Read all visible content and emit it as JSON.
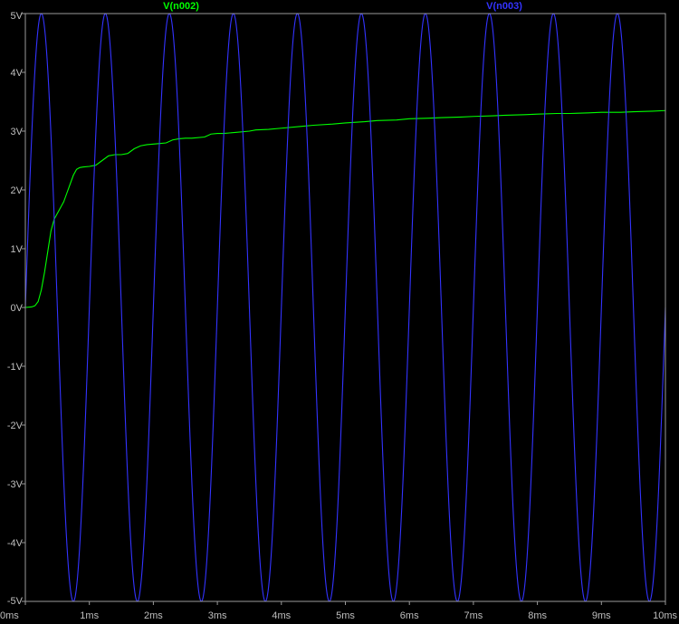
{
  "chart_data": {
    "type": "line",
    "title": "",
    "xlabel": "",
    "ylabel": "",
    "xlim": [
      0,
      10
    ],
    "ylim": [
      -5,
      5
    ],
    "grid": false,
    "legend_position": "top",
    "x_ticks": [
      {
        "value": 0,
        "label": "0ms"
      },
      {
        "value": 1,
        "label": "1ms"
      },
      {
        "value": 2,
        "label": "2ms"
      },
      {
        "value": 3,
        "label": "3ms"
      },
      {
        "value": 4,
        "label": "4ms"
      },
      {
        "value": 5,
        "label": "5ms"
      },
      {
        "value": 6,
        "label": "6ms"
      },
      {
        "value": 7,
        "label": "7ms"
      },
      {
        "value": 8,
        "label": "8ms"
      },
      {
        "value": 9,
        "label": "9ms"
      },
      {
        "value": 10,
        "label": "10ms"
      }
    ],
    "y_ticks": [
      {
        "value": 5,
        "label": "5V"
      },
      {
        "value": 4,
        "label": "4V"
      },
      {
        "value": 3,
        "label": "3V"
      },
      {
        "value": 2,
        "label": "2V"
      },
      {
        "value": 1,
        "label": "1V"
      },
      {
        "value": 0,
        "label": "0V"
      },
      {
        "value": -1,
        "label": "-1V"
      },
      {
        "value": -2,
        "label": "-2V"
      },
      {
        "value": -3,
        "label": "-3V"
      },
      {
        "value": -4,
        "label": "-4V"
      },
      {
        "value": -5,
        "label": "-5V"
      }
    ],
    "series": [
      {
        "name": "V(n002)",
        "color": "#00ff00",
        "x": [
          0,
          0.1,
          0.15,
          0.2,
          0.25,
          0.3,
          0.35,
          0.4,
          0.45,
          0.5,
          0.55,
          0.6,
          0.65,
          0.7,
          0.75,
          0.8,
          0.85,
          0.9,
          1.0,
          1.1,
          1.2,
          1.3,
          1.4,
          1.5,
          1.6,
          1.7,
          1.8,
          1.9,
          2.0,
          2.1,
          2.2,
          2.3,
          2.4,
          2.5,
          2.6,
          2.8,
          2.9,
          3.0,
          3.1,
          3.3,
          3.5,
          3.6,
          3.8,
          4.0,
          4.3,
          4.5,
          4.8,
          5.0,
          5.3,
          5.5,
          5.8,
          6.0,
          6.3,
          6.5,
          6.8,
          7.0,
          7.3,
          7.5,
          7.8,
          8.0,
          8.3,
          8.5,
          8.8,
          9.0,
          9.3,
          9.5,
          9.8,
          10.0
        ],
        "values": [
          0.0,
          0.01,
          0.03,
          0.1,
          0.3,
          0.6,
          0.95,
          1.3,
          1.5,
          1.6,
          1.7,
          1.8,
          1.95,
          2.1,
          2.25,
          2.35,
          2.38,
          2.39,
          2.4,
          2.42,
          2.5,
          2.58,
          2.6,
          2.6,
          2.62,
          2.7,
          2.75,
          2.77,
          2.78,
          2.79,
          2.8,
          2.85,
          2.87,
          2.88,
          2.88,
          2.9,
          2.95,
          2.96,
          2.96,
          2.98,
          3.0,
          3.02,
          3.03,
          3.05,
          3.08,
          3.1,
          3.12,
          3.14,
          3.16,
          3.18,
          3.19,
          3.21,
          3.22,
          3.23,
          3.24,
          3.25,
          3.26,
          3.27,
          3.28,
          3.29,
          3.3,
          3.3,
          3.31,
          3.32,
          3.32,
          3.33,
          3.34,
          3.35
        ]
      },
      {
        "name": "V(n003)",
        "color": "#3333ff",
        "type": "sine",
        "amplitude": 5,
        "frequency_khz": 1,
        "phase_deg": 0,
        "offset": 0,
        "x_range": [
          0,
          10
        ]
      }
    ]
  }
}
